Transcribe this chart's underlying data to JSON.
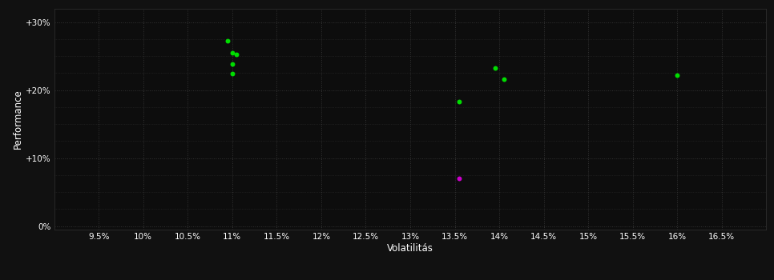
{
  "background_color": "#111111",
  "plot_bg_color": "#0d0d0d",
  "grid_color": "#333333",
  "text_color": "#ffffff",
  "xlabel": "Volatilitás",
  "ylabel": "Performance",
  "xlim": [
    0.09,
    0.17
  ],
  "ylim": [
    -0.005,
    0.32
  ],
  "xticks": [
    0.095,
    0.1,
    0.105,
    0.11,
    0.115,
    0.12,
    0.125,
    0.13,
    0.135,
    0.14,
    0.145,
    0.15,
    0.155,
    0.16,
    0.165
  ],
  "yticks": [
    0.0,
    0.1,
    0.2,
    0.3
  ],
  "ytick_labels": [
    "0%",
    "+10%",
    "+20%",
    "+30%"
  ],
  "xtick_labels": [
    "9.5%",
    "10%",
    "10.5%",
    "11%",
    "11.5%",
    "12%",
    "12.5%",
    "13%",
    "13.5%",
    "14%",
    "14.5%",
    "15%",
    "15.5%",
    "16%",
    "16.5%"
  ],
  "green_points": [
    [
      0.1095,
      0.272
    ],
    [
      0.11,
      0.255
    ],
    [
      0.1105,
      0.252
    ],
    [
      0.11,
      0.238
    ],
    [
      0.11,
      0.224
    ],
    [
      0.1355,
      0.183
    ],
    [
      0.1395,
      0.232
    ],
    [
      0.1405,
      0.216
    ],
    [
      0.16,
      0.222
    ]
  ],
  "magenta_points": [
    [
      0.1355,
      0.07
    ]
  ],
  "green_color": "#00dd00",
  "magenta_color": "#cc00cc",
  "marker_size": 18,
  "figsize": [
    9.66,
    3.5
  ],
  "dpi": 100,
  "minor_yticks": [
    0.025,
    0.05,
    0.075,
    0.125,
    0.15,
    0.175,
    0.225,
    0.25,
    0.275
  ],
  "minor_xticks": []
}
